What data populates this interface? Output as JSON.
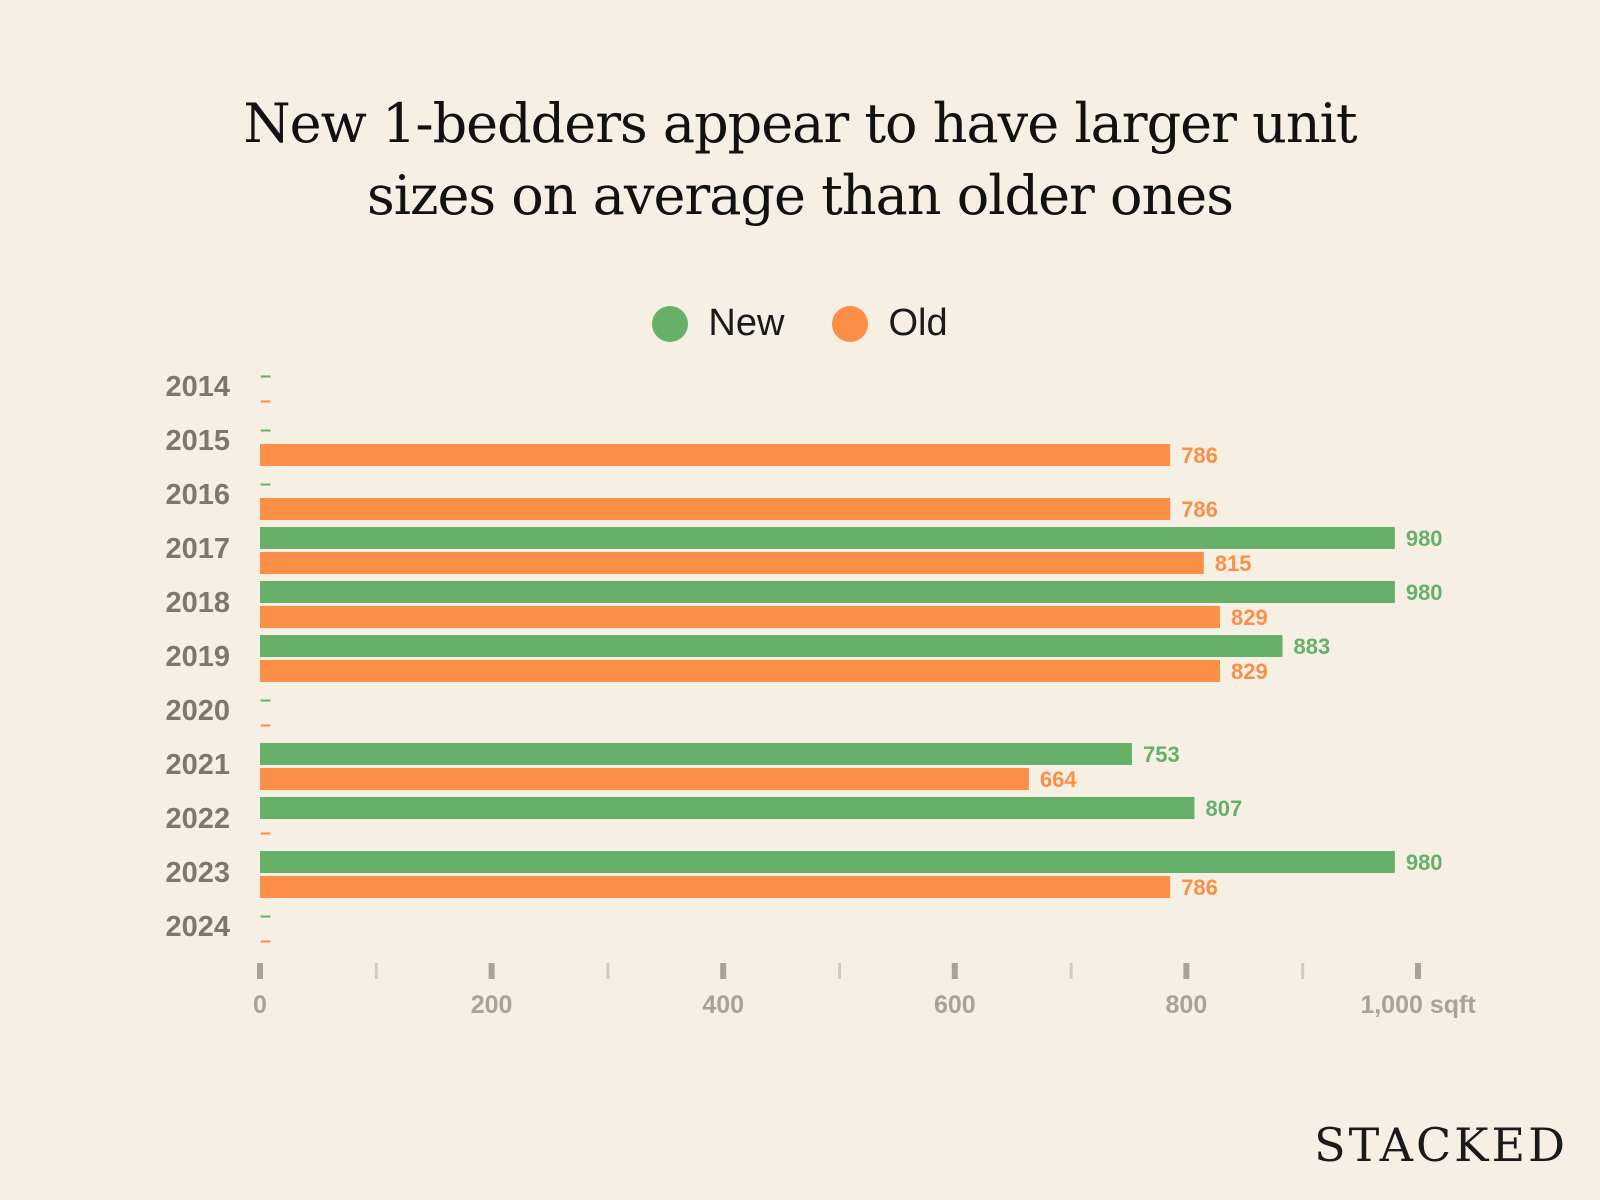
{
  "chart_data": {
    "type": "bar",
    "orientation": "horizontal",
    "title_lines": [
      "New 1-bedders appear to have larger unit",
      "sizes on average than older ones"
    ],
    "categories": [
      "2014",
      "2015",
      "2016",
      "2017",
      "2018",
      "2019",
      "2020",
      "2021",
      "2022",
      "2023",
      "2024"
    ],
    "series": [
      {
        "name": "New",
        "color": "#67b06a",
        "values": [
          null,
          null,
          null,
          980,
          980,
          883,
          null,
          753,
          807,
          980,
          null
        ]
      },
      {
        "name": "Old",
        "color": "#fb8f48",
        "values": [
          null,
          786,
          786,
          815,
          829,
          829,
          null,
          664,
          null,
          786,
          null
        ]
      }
    ],
    "missing_marker": "–",
    "xlim": [
      0,
      1000
    ],
    "x_ticks": [
      {
        "value": 0,
        "label": "0"
      },
      {
        "value": 200,
        "label": "200"
      },
      {
        "value": 400,
        "label": "400"
      },
      {
        "value": 600,
        "label": "600"
      },
      {
        "value": 800,
        "label": "800"
      },
      {
        "value": 1000,
        "label": "1,000 sqft"
      }
    ],
    "x_minor_ticks": [
      100,
      300,
      500,
      700,
      900
    ],
    "legend_position": "top-center",
    "grid": false
  },
  "brand": "STACKED",
  "colors": {
    "background": "#f5f0e3",
    "new": "#67b06a",
    "old": "#fb8f48",
    "year_label": "#7d776d",
    "axis": "#a9a396"
  }
}
